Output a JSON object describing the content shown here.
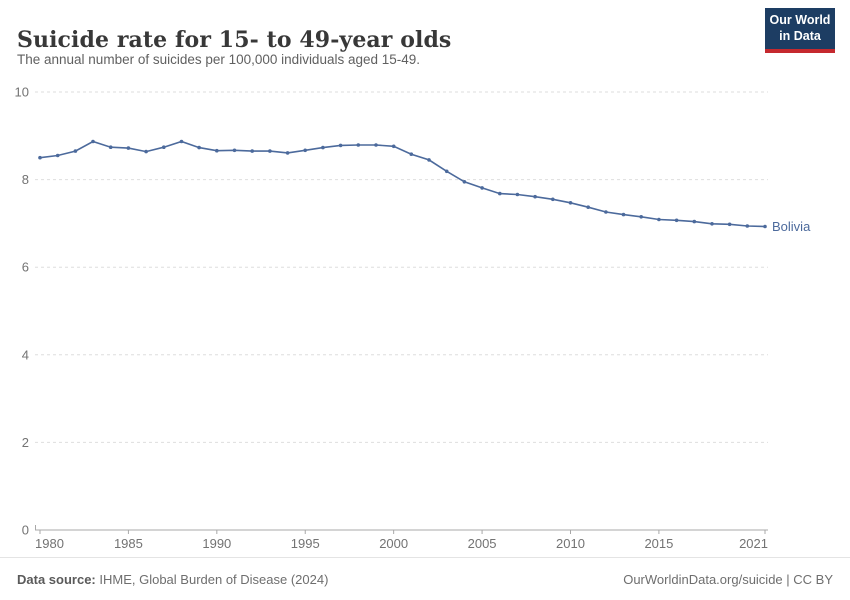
{
  "header": {
    "title": "Suicide rate for 15- to 49-year olds",
    "subtitle": "The annual number of suicides per 100,000 individuals aged 15-49.",
    "logo": {
      "line1": "Our World",
      "line2": "in Data"
    }
  },
  "theme": {
    "background": "#ffffff",
    "line_color": "#4c6a9c",
    "grid_color": "#dedede",
    "axis_color": "#a8a8a8",
    "tick_text_color": "#737373",
    "title_color": "#383838",
    "subtitle_color": "#606060",
    "logo_bg": "#1d3d63",
    "logo_accent": "#c5292e"
  },
  "chart_data": {
    "type": "line",
    "title": "Suicide rate for 15- to 49-year olds",
    "xlabel": "",
    "ylabel": "",
    "ylim": [
      0,
      10
    ],
    "y_ticks": [
      0,
      2,
      4,
      6,
      8,
      10
    ],
    "x_ticks": [
      1980,
      1985,
      1990,
      1995,
      2000,
      2005,
      2010,
      2015,
      2021
    ],
    "grid": "horizontal dashed",
    "legend_position": "end-of-line label",
    "x": [
      1980,
      1981,
      1982,
      1983,
      1984,
      1985,
      1986,
      1987,
      1988,
      1989,
      1990,
      1991,
      1992,
      1993,
      1994,
      1995,
      1996,
      1997,
      1998,
      1999,
      2000,
      2001,
      2002,
      2003,
      2004,
      2005,
      2006,
      2007,
      2008,
      2009,
      2010,
      2011,
      2012,
      2013,
      2014,
      2015,
      2016,
      2017,
      2018,
      2019,
      2020,
      2021
    ],
    "series": [
      {
        "name": "Bolivia",
        "color": "#4c6a9c",
        "values": [
          8.5,
          8.55,
          8.65,
          8.87,
          8.74,
          8.72,
          8.64,
          8.74,
          8.87,
          8.73,
          8.66,
          8.67,
          8.65,
          8.65,
          8.61,
          8.67,
          8.73,
          8.78,
          8.79,
          8.79,
          8.76,
          8.58,
          8.45,
          8.19,
          7.95,
          7.81,
          7.68,
          7.66,
          7.61,
          7.55,
          7.47,
          7.37,
          7.26,
          7.2,
          7.15,
          7.09,
          7.07,
          7.04,
          6.99,
          6.98,
          6.94,
          6.93
        ]
      }
    ]
  },
  "footer": {
    "source_label": "Data source:",
    "source_text": "IHME, Global Burden of Disease (2024)",
    "credit": "OurWorldinData.org/suicide | CC BY"
  }
}
